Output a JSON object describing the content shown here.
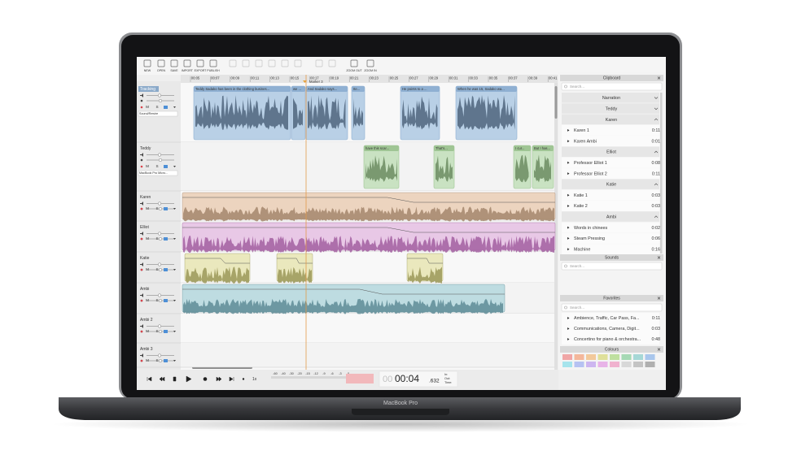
{
  "toolbar": [
    "NEW",
    "OPEN",
    "SAVE",
    "IMPORT",
    "EXPORT",
    "PUBLISH",
    "ZOOM OUT",
    "ZOOM IN"
  ],
  "ruler": [
    "00:05",
    "00:07",
    "00:09",
    "00:11",
    "00:13",
    "00:15",
    "00:17",
    "00:19",
    "00:21",
    "00:23",
    "00:25",
    "00:27",
    "00:29",
    "00:31",
    "00:33",
    "00:35",
    "00:37",
    "00:39",
    "00:41"
  ],
  "marker": "Marker 3",
  "track_buttons": {
    "mute": "M",
    "solo": "S"
  },
  "tracks": [
    {
      "name": "Tracking",
      "input": "Sound/Rewire",
      "clips": [
        "Teddy Sadako has been in the clothing busines...",
        "we ...",
        "And Sadako says...",
        "Ite...",
        "He points to a ...",
        "When he was 15, Sadako wa..."
      ]
    },
    {
      "name": "Teddy",
      "input": "MacBook Pro Micro...",
      "clips": [
        "have this scar...",
        "That's...",
        "I cur...",
        "But I has..."
      ]
    },
    {
      "name": "Karen"
    },
    {
      "name": "Elliot"
    },
    {
      "name": "Katie"
    },
    {
      "name": "Ambi"
    },
    {
      "name": "Ambi 2"
    },
    {
      "name": "Ambi 3"
    }
  ],
  "transport": {
    "speed": "1x",
    "meter": [
      "-60",
      "-40",
      "-30",
      "-20",
      "-15",
      "-12",
      "-9",
      "-6",
      "-3",
      "0"
    ],
    "hours": "00",
    "time": "00:04",
    "ms": ".632",
    "fields": [
      "In:",
      "Out:",
      "Time:"
    ]
  },
  "clipboard": {
    "title": "Clipboard",
    "search": "Search...",
    "groups": [
      {
        "name": "Narration",
        "items": []
      },
      {
        "name": "Teddy",
        "items": []
      },
      {
        "name": "Karen",
        "items": [
          {
            "name": "Karen 1",
            "duration": "0:11"
          },
          {
            "name": "Karen Ambi",
            "duration": "0:01"
          }
        ]
      },
      {
        "name": "Elliot",
        "items": [
          {
            "name": "Professor Elliot 1",
            "duration": "0:08"
          },
          {
            "name": "Professor Elliot 2",
            "duration": "0:11"
          }
        ]
      },
      {
        "name": "Katie",
        "items": [
          {
            "name": "Katie 1",
            "duration": "0:03"
          },
          {
            "name": "Katie 2",
            "duration": "0:03"
          }
        ]
      },
      {
        "name": "Ambi",
        "items": [
          {
            "name": "Words in chinees",
            "duration": "0:02"
          },
          {
            "name": "Steam Pressing",
            "duration": "0:06"
          },
          {
            "name": "Machine",
            "duration": "0:16"
          }
        ]
      }
    ]
  },
  "sounds": {
    "title": "Sounds",
    "search": "Search..."
  },
  "favorites": {
    "title": "Favorites",
    "search": "Search...",
    "items": [
      {
        "name": "Ambience, Traffic, Car Pass, Fa...",
        "duration": "0:11"
      },
      {
        "name": "Communications, Camera, Digit...",
        "duration": "0:03"
      },
      {
        "name": "Concertino for piano & orchestra...",
        "duration": "0:48"
      }
    ]
  },
  "colours": {
    "title": "Colours"
  },
  "device": "MacBook Pro"
}
